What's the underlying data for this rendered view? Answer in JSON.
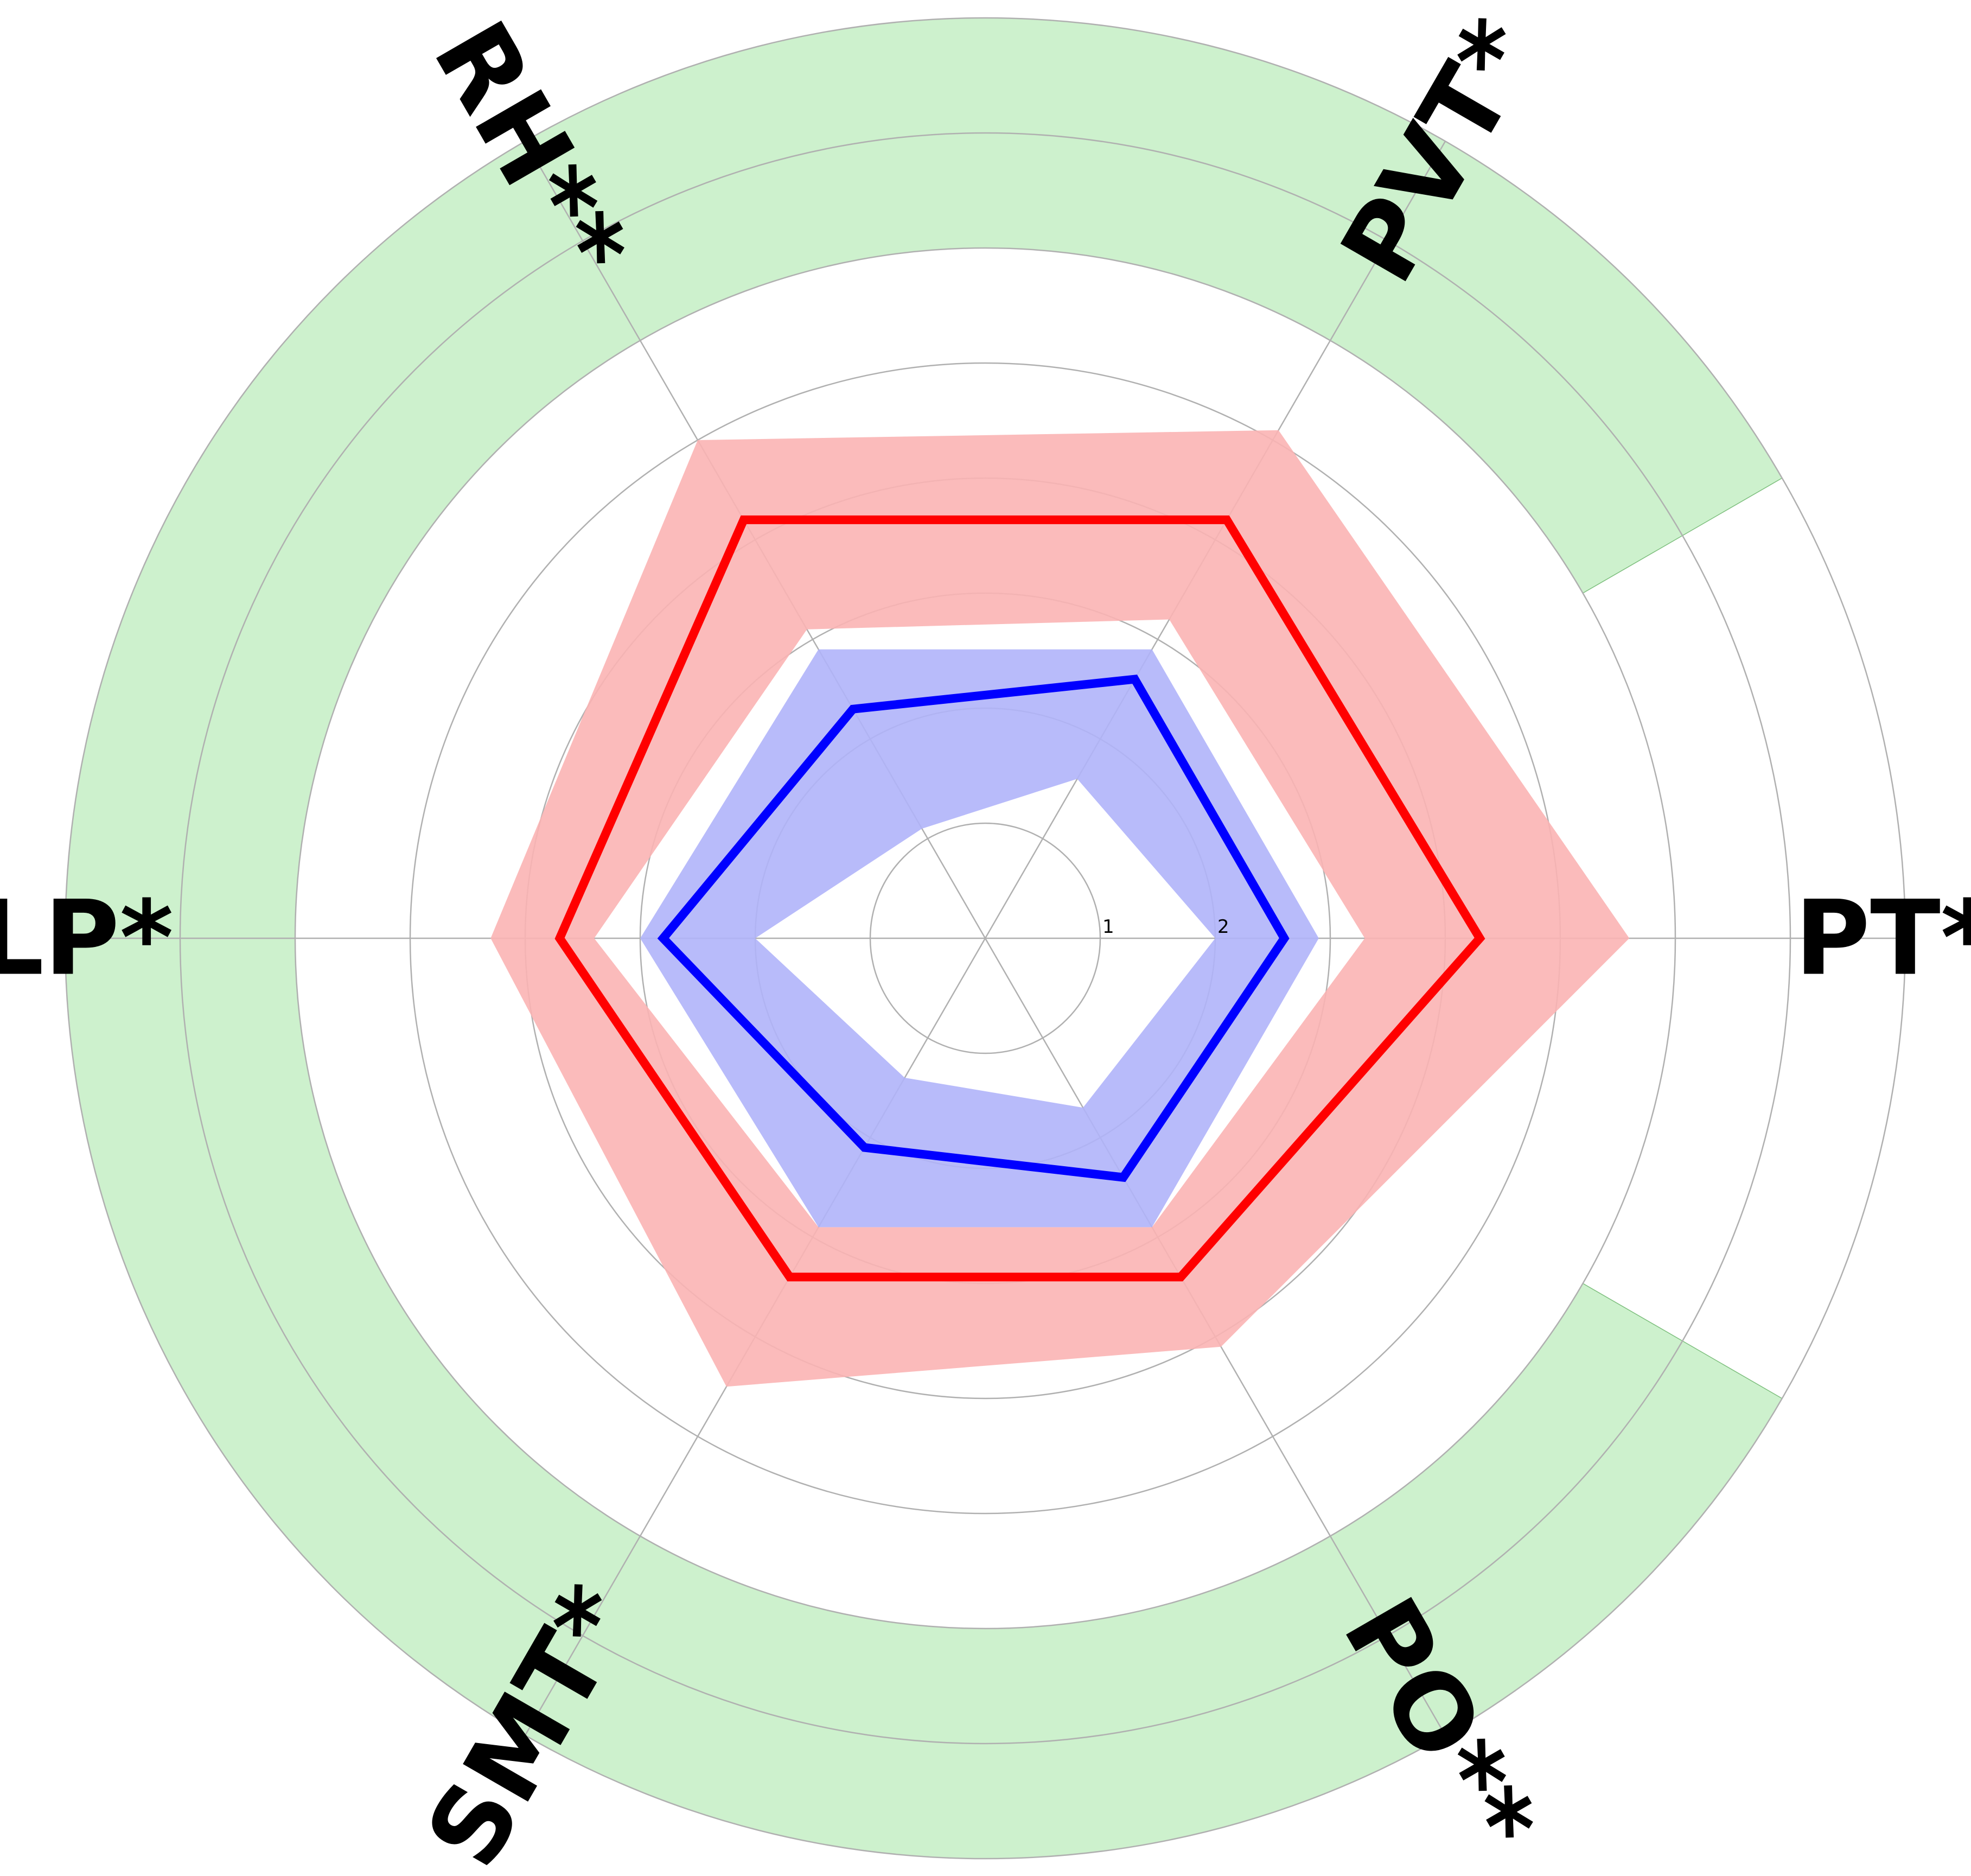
{
  "chart_data": {
    "type": "radar",
    "axes": [
      "PT*",
      "PVT*",
      "RH**",
      "LP*",
      "SMT*",
      "PO**"
    ],
    "radial_ticks": [
      "1",
      "2"
    ],
    "rlim": [
      0,
      8
    ],
    "grid": true,
    "reference_band": {
      "inner": 6,
      "outer": 8,
      "color": "#90e090"
    },
    "series": [
      {
        "color": "#ff0000",
        "values": [
          4.3,
          4.2,
          4.2,
          3.7,
          3.4,
          3.4
        ],
        "band": {
          "low": [
            3.3,
            3.2,
            3.1,
            3.4,
            2.9,
            2.9
          ],
          "high": [
            5.6,
            5.1,
            5.0,
            4.3,
            4.5,
            4.1
          ],
          "color": "#fbb4b4"
        }
      },
      {
        "color": "#0000ff",
        "values": [
          2.6,
          2.6,
          2.3,
          2.8,
          2.1,
          2.4
        ],
        "band": {
          "low": [
            2.0,
            1.6,
            1.1,
            2.0,
            1.4,
            1.7
          ],
          "high": [
            2.9,
            2.9,
            2.9,
            3.0,
            2.9,
            2.9
          ],
          "color": "#b0b4fa"
        }
      }
    ]
  }
}
